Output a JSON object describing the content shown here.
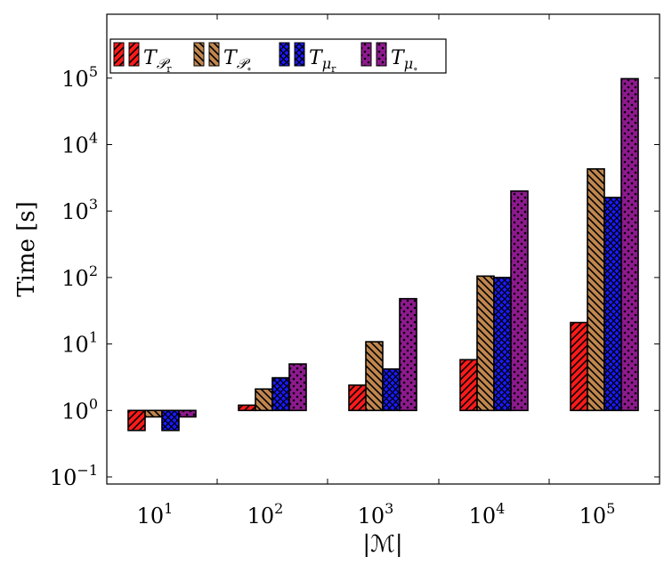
{
  "chart_data": {
    "type": "bar",
    "scale": "log",
    "baseline": 1,
    "ylim": [
      0.1,
      1000000
    ],
    "xlabel": "|ℳ|",
    "ylabel": "Time [s]",
    "categories": [
      {
        "base": "10",
        "exp": "1"
      },
      {
        "base": "10",
        "exp": "2"
      },
      {
        "base": "10",
        "exp": "3"
      },
      {
        "base": "10",
        "exp": "4"
      },
      {
        "base": "10",
        "exp": "5"
      }
    ],
    "yticks": [
      {
        "value": 0.1,
        "base": "10",
        "exp": "−1"
      },
      {
        "value": 1,
        "base": "10",
        "exp": "0"
      },
      {
        "value": 10,
        "base": "10",
        "exp": "1"
      },
      {
        "value": 100,
        "base": "10",
        "exp": "2"
      },
      {
        "value": 1000,
        "base": "10",
        "exp": "3"
      },
      {
        "value": 10000,
        "base": "10",
        "exp": "4"
      },
      {
        "value": 100000,
        "base": "10",
        "exp": "5"
      }
    ],
    "legend_position": "top-left",
    "series": [
      {
        "name": "T_P_r",
        "label_main": "T",
        "label_sub": "𝒫",
        "label_subsub": "r",
        "color": "#ff1a1a",
        "pattern": "hatch-ne",
        "values": [
          0.5,
          1.2,
          2.4,
          5.8,
          21
        ]
      },
      {
        "name": "T_P_o",
        "label_main": "T",
        "label_sub": "𝒫",
        "label_subsub": "∘",
        "color": "#c0864e",
        "pattern": "hatch-nw",
        "values": [
          0.8,
          2.1,
          10.8,
          105,
          4300
        ]
      },
      {
        "name": "T_mu_r",
        "label_main": "T",
        "label_sub": "μ",
        "label_subsub": "r",
        "color": "#1a1aff",
        "pattern": "crosshatch",
        "values": [
          0.5,
          3.1,
          4.2,
          100,
          1600
        ]
      },
      {
        "name": "T_mu_o",
        "label_main": "T",
        "label_sub": "μ",
        "label_subsub": "∘",
        "color": "#8e1a8e",
        "pattern": "dots",
        "values": [
          0.8,
          5.0,
          48,
          2000,
          98000
        ]
      }
    ]
  }
}
